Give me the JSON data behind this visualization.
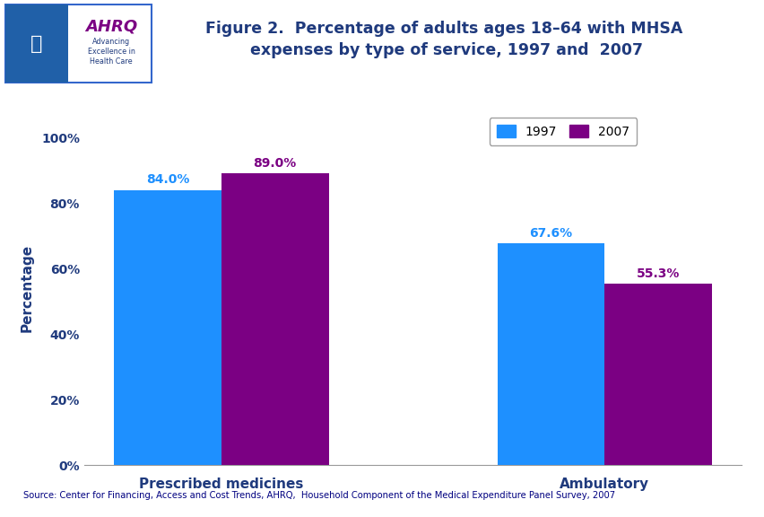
{
  "title": "Figure 2.  Percentage of adults ages 18–64 with MHSA\n expenses by type of service, 1997 and  2007",
  "categories": [
    "Prescribed medicines",
    "Ambulatory"
  ],
  "values_1997": [
    84.0,
    67.6
  ],
  "values_2007": [
    89.0,
    55.3
  ],
  "labels_1997": [
    "84.0%",
    "67.6%"
  ],
  "labels_2007": [
    "89.0%",
    "55.3%"
  ],
  "color_1997": "#1E90FF",
  "color_2007": "#7B0083",
  "ylabel": "Percentage",
  "yticks": [
    0,
    20,
    40,
    60,
    80,
    100
  ],
  "ytick_labels": [
    "0%",
    "20%",
    "40%",
    "60%",
    "80%",
    "100%"
  ],
  "legend_labels": [
    "1997",
    "2007"
  ],
  "source_text": "Source: Center for Financing, Access and Cost Trends, AHRQ,  Household Component of the Medical Expenditure Panel Survey, 2007",
  "title_color": "#1F3A7D",
  "axis_label_color": "#1F3A7D",
  "tick_label_color": "#1F3A7D",
  "bar_width": 0.28,
  "background_color": "#FFFFFF",
  "outer_background": "#FFFFFF",
  "header_line_color": "#1F3A7D",
  "category_label_color": "#1F3A7D",
  "source_color": "#000080",
  "value_label_color_1997": "#1E90FF",
  "value_label_color_2007": "#7B0083"
}
